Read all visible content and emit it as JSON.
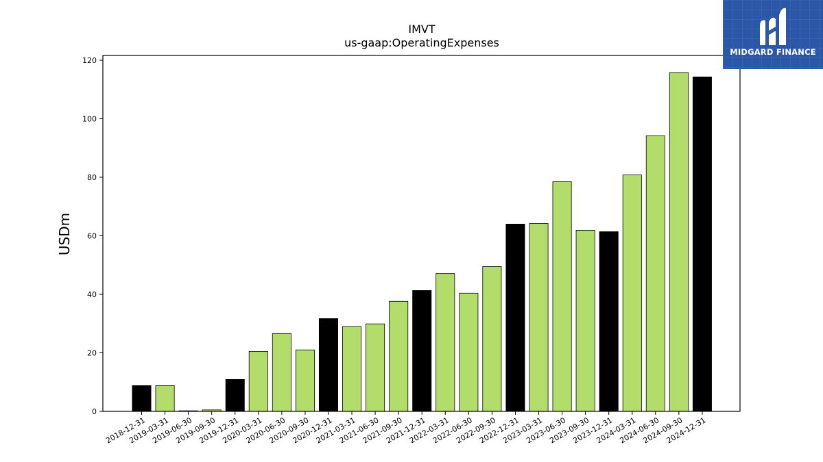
{
  "chart_data": {
    "type": "bar",
    "title": "IMVT",
    "subtitle": "us-gaap:OperatingExpenses",
    "xlabel": "",
    "ylabel": "USDm",
    "ylim": [
      0,
      120
    ],
    "yticks": [
      0,
      20,
      40,
      60,
      80,
      100,
      120
    ],
    "grid": false,
    "categories": [
      "2018-12-31",
      "2019-03-31",
      "2019-06-30",
      "2019-09-30",
      "2019-12-31",
      "2020-03-31",
      "2020-06-30",
      "2020-09-30",
      "2020-12-31",
      "2021-03-31",
      "2021-06-30",
      "2021-09-30",
      "2021-12-31",
      "2022-03-31",
      "2022-06-30",
      "2022-09-30",
      "2022-12-31",
      "2023-03-31",
      "2023-06-30",
      "2023-09-30",
      "2023-12-31",
      "2024-03-31",
      "2024-06-30",
      "2024-09-30",
      "2024-12-31"
    ],
    "values": [
      8.8,
      8.8,
      0.2,
      0.5,
      10.9,
      20.5,
      26.6,
      21.0,
      31.7,
      29.0,
      29.9,
      37.6,
      41.3,
      47.1,
      40.4,
      49.5,
      64.0,
      64.2,
      78.5,
      61.9,
      61.4,
      80.8,
      94.2,
      115.8,
      114.3
    ],
    "colors": [
      "#000000",
      "#b3dd6a",
      "#b3dd6a",
      "#b3dd6a",
      "#000000",
      "#b3dd6a",
      "#b3dd6a",
      "#b3dd6a",
      "#000000",
      "#b3dd6a",
      "#b3dd6a",
      "#b3dd6a",
      "#000000",
      "#b3dd6a",
      "#b3dd6a",
      "#b3dd6a",
      "#000000",
      "#b3dd6a",
      "#b3dd6a",
      "#b3dd6a",
      "#000000",
      "#b3dd6a",
      "#b3dd6a",
      "#b3dd6a",
      "#000000"
    ]
  },
  "logo": {
    "text": "MIDGARD FINANCE",
    "icon": "midgard-logo-icon",
    "background": "#2b57a8"
  }
}
